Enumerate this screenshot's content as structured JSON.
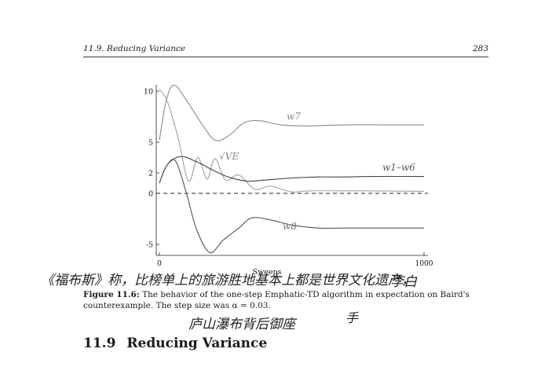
{
  "header": {
    "section": "11.9.  Reducing Variance",
    "page": "283"
  },
  "figure": {
    "caption_label": "Figure 11.6:",
    "caption_text": " The behavior of the one-step Emphatic-TD algorithm in expectation on Baird's counterexample. The step size was α = 0.03."
  },
  "section_heading": {
    "number": "11.9",
    "title": "Reducing Variance"
  },
  "chart_data": {
    "type": "line",
    "xlabel": "Sweeps",
    "xlim": [
      0,
      1000
    ],
    "ylim": [
      -6,
      11
    ],
    "x_ticks": [
      "0",
      "1000"
    ],
    "y_ticks": [
      "10",
      "5",
      "2",
      "0",
      "-5"
    ],
    "annotations": [
      "w7",
      "√VE",
      "w1–w6",
      "w8"
    ],
    "series": [
      {
        "name": "w7",
        "x": [
          0,
          25,
          55,
          100,
          160,
          210,
          260,
          320,
          380,
          460,
          560,
          700,
          850,
          1000
        ],
        "y": [
          5.2,
          9.0,
          10.6,
          9.2,
          6.8,
          5.2,
          5.6,
          6.9,
          7.1,
          6.7,
          6.6,
          6.7,
          6.7,
          6.7
        ]
      },
      {
        "name": "√VE",
        "x": [
          0,
          30,
          70,
          110,
          145,
          180,
          210,
          250,
          300,
          360,
          420,
          500,
          600,
          1000
        ],
        "y": [
          10.2,
          9.0,
          5.5,
          1.2,
          3.5,
          1.4,
          3.4,
          1.3,
          1.8,
          0.4,
          0.7,
          0.15,
          0.25,
          0.2
        ]
      },
      {
        "name": "w1–w6",
        "x": [
          0,
          30,
          80,
          140,
          200,
          260,
          330,
          400,
          500,
          600,
          700,
          800,
          1000
        ],
        "y": [
          1.0,
          2.8,
          3.6,
          3.1,
          2.3,
          1.6,
          1.2,
          1.3,
          1.5,
          1.6,
          1.6,
          1.65,
          1.65
        ]
      },
      {
        "name": "w8",
        "x": [
          0,
          25,
          60,
          100,
          140,
          190,
          240,
          300,
          350,
          420,
          500,
          600,
          700,
          1000
        ],
        "y": [
          1.0,
          2.6,
          3.2,
          0.2,
          -3.5,
          -5.8,
          -4.6,
          -3.4,
          -2.4,
          -2.6,
          -3.1,
          -3.4,
          -3.4,
          -3.4
        ]
      }
    ]
  },
  "handwriting": {
    "line1": "《福布斯》称，比榜单上的旅游胜地基本上都是世界文化遗产，",
    "signature1": "李白",
    "line2": "庐山瀑布背后御座",
    "mark": "手"
  }
}
